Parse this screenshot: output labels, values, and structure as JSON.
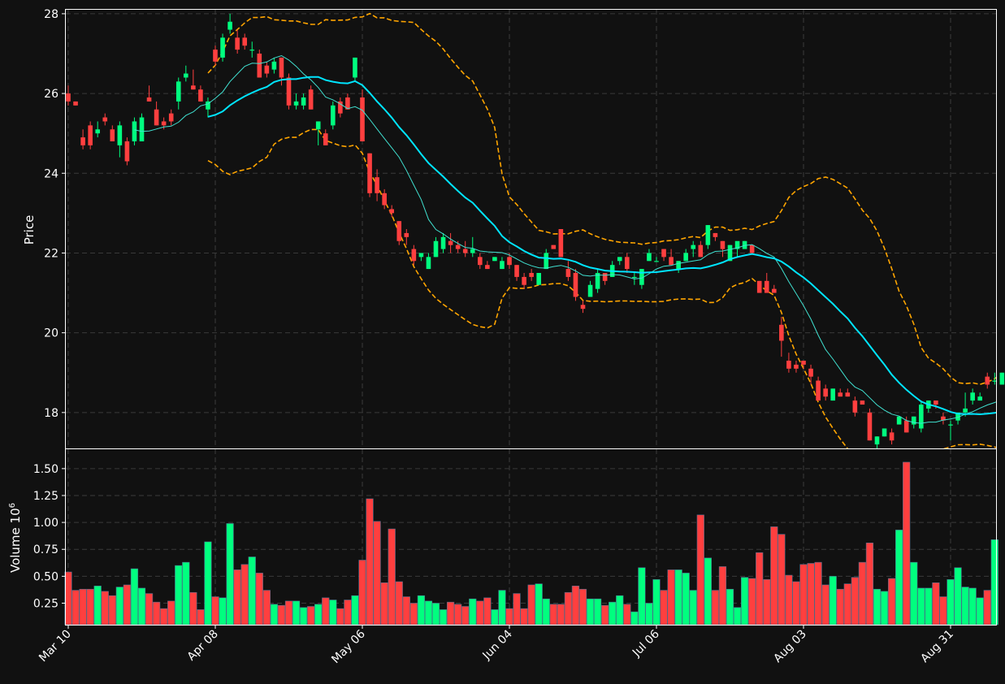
{
  "chart_data": {
    "type": "candlestick",
    "colors": {
      "background": "#111111",
      "up": "#00ff7f",
      "down": "#ff3f3f",
      "volume_edge": "#4a6b8a",
      "bollinger": "#ffa500",
      "ma_fast": "#40e0d0",
      "ma_slow": "#00e5ff",
      "grid": "#3a3a3a",
      "frame": "#ffffff"
    },
    "price_panel": {
      "ylabel": "Price",
      "ylim": [
        17.1,
        28.1
      ],
      "yticks": [
        18,
        20,
        22,
        24,
        26,
        28
      ],
      "ytick_labels": [
        "18",
        "20",
        "22",
        "24",
        "26",
        "28"
      ],
      "grid": true
    },
    "volume_panel": {
      "ylabel": "Volume",
      "ylabel_exp_base": "10",
      "ylabel_exp": "6",
      "ylim": [
        0.05,
        1.68
      ],
      "yticks": [
        0.25,
        0.5,
        0.75,
        1.0,
        1.25,
        1.5
      ],
      "ytick_labels": [
        "0.25",
        "0.50",
        "0.75",
        "1.00",
        "1.25",
        "1.50"
      ],
      "grid": true
    },
    "x_axis": {
      "tick_index": [
        0,
        20,
        40,
        60,
        80,
        100,
        120
      ],
      "tick_labels": [
        "Mar 10",
        "Apr 08",
        "May 06",
        "Jun 04",
        "Jul 06",
        "Aug 03",
        "Aug 31"
      ]
    },
    "candles": [
      [
        26.0,
        26.2,
        25.7,
        25.8
      ],
      [
        25.8,
        25.8,
        25.7,
        25.7
      ],
      [
        24.9,
        25.1,
        24.6,
        24.7
      ],
      [
        25.2,
        25.3,
        24.6,
        24.7
      ],
      [
        25.0,
        25.3,
        24.9,
        25.1
      ],
      [
        25.4,
        25.5,
        25.2,
        25.3
      ],
      [
        25.1,
        25.2,
        24.8,
        24.8
      ],
      [
        24.7,
        25.3,
        24.4,
        25.2
      ],
      [
        24.8,
        24.9,
        24.2,
        24.3
      ],
      [
        24.8,
        25.4,
        24.7,
        25.3
      ],
      [
        24.8,
        25.5,
        24.8,
        25.4
      ],
      [
        25.9,
        26.2,
        25.8,
        25.8
      ],
      [
        25.6,
        25.8,
        25.2,
        25.2
      ],
      [
        25.3,
        25.4,
        25.1,
        25.2
      ],
      [
        25.5,
        25.6,
        25.2,
        25.3
      ],
      [
        25.8,
        26.4,
        25.6,
        26.3
      ],
      [
        26.4,
        26.7,
        26.3,
        26.5
      ],
      [
        26.2,
        26.6,
        26.1,
        26.1
      ],
      [
        26.1,
        26.2,
        25.8,
        25.8
      ],
      [
        25.6,
        25.9,
        25.4,
        25.8
      ],
      [
        27.1,
        27.2,
        26.7,
        26.8
      ],
      [
        26.9,
        27.5,
        26.8,
        27.4
      ],
      [
        27.6,
        28.0,
        27.5,
        27.8
      ],
      [
        27.4,
        27.6,
        27.0,
        27.1
      ],
      [
        27.4,
        27.5,
        27.1,
        27.2
      ],
      [
        27.1,
        27.3,
        26.9,
        27.1
      ],
      [
        27.0,
        27.1,
        26.4,
        26.4
      ],
      [
        26.7,
        26.8,
        26.4,
        26.5
      ],
      [
        26.6,
        26.9,
        26.5,
        26.8
      ],
      [
        26.9,
        26.9,
        26.2,
        26.4
      ],
      [
        26.4,
        26.5,
        25.6,
        25.7
      ],
      [
        25.7,
        26.0,
        25.6,
        25.8
      ],
      [
        25.7,
        26.0,
        25.6,
        25.9
      ],
      [
        26.1,
        26.2,
        25.6,
        25.6
      ],
      [
        25.1,
        25.3,
        24.7,
        25.3
      ],
      [
        25.0,
        25.1,
        24.7,
        24.7
      ],
      [
        25.2,
        25.8,
        25.1,
        25.7
      ],
      [
        25.8,
        25.9,
        25.4,
        25.5
      ],
      [
        25.9,
        26.0,
        25.6,
        25.6
      ],
      [
        26.4,
        26.9,
        26.3,
        26.9
      ],
      [
        25.9,
        26.1,
        24.8,
        24.8
      ],
      [
        24.5,
        24.5,
        23.4,
        23.5
      ],
      [
        23.9,
        24.1,
        23.3,
        23.5
      ],
      [
        23.5,
        23.6,
        23.1,
        23.2
      ],
      [
        23.1,
        23.2,
        22.9,
        23.0
      ],
      [
        22.8,
        22.8,
        22.2,
        22.3
      ],
      [
        22.5,
        22.6,
        22.2,
        22.4
      ],
      [
        22.1,
        22.2,
        21.7,
        21.8
      ],
      [
        21.9,
        22.0,
        21.8,
        22.0
      ],
      [
        21.6,
        22.0,
        21.6,
        21.9
      ],
      [
        21.9,
        22.4,
        21.9,
        22.3
      ],
      [
        22.1,
        22.5,
        22.0,
        22.4
      ],
      [
        22.3,
        22.5,
        22.0,
        22.2
      ],
      [
        22.2,
        22.3,
        22.0,
        22.1
      ],
      [
        22.1,
        22.3,
        21.9,
        22.0
      ],
      [
        22.0,
        22.4,
        21.9,
        22.1
      ],
      [
        21.9,
        22.0,
        21.6,
        21.7
      ],
      [
        21.7,
        21.8,
        21.6,
        21.6
      ],
      [
        21.8,
        21.9,
        21.8,
        21.9
      ],
      [
        21.6,
        21.9,
        21.6,
        21.8
      ],
      [
        21.9,
        22.0,
        21.6,
        21.7
      ],
      [
        21.7,
        21.7,
        21.3,
        21.4
      ],
      [
        21.4,
        21.5,
        21.1,
        21.2
      ],
      [
        21.5,
        21.6,
        21.3,
        21.4
      ],
      [
        21.2,
        21.5,
        21.2,
        21.5
      ],
      [
        21.6,
        22.1,
        21.6,
        22.0
      ],
      [
        22.2,
        22.2,
        22.1,
        22.1
      ],
      [
        22.6,
        22.6,
        21.9,
        21.9
      ],
      [
        21.6,
        21.8,
        21.3,
        21.4
      ],
      [
        21.5,
        21.6,
        20.8,
        20.9
      ],
      [
        20.7,
        20.8,
        20.5,
        20.6
      ],
      [
        20.9,
        21.3,
        20.9,
        21.2
      ],
      [
        21.1,
        21.6,
        21.0,
        21.5
      ],
      [
        21.5,
        21.5,
        21.2,
        21.3
      ],
      [
        21.4,
        21.8,
        21.4,
        21.7
      ],
      [
        21.8,
        21.9,
        21.7,
        21.9
      ],
      [
        21.9,
        22.0,
        21.5,
        21.6
      ],
      [
        21.4,
        21.5,
        21.2,
        21.4
      ],
      [
        21.2,
        21.6,
        21.1,
        21.6
      ],
      [
        21.8,
        22.1,
        21.8,
        22.0
      ],
      [
        21.8,
        21.9,
        21.8,
        21.8
      ],
      [
        22.1,
        22.1,
        21.8,
        21.9
      ],
      [
        21.9,
        22.1,
        21.7,
        21.7
      ],
      [
        21.6,
        21.8,
        21.5,
        21.8
      ],
      [
        21.8,
        22.1,
        21.8,
        22.0
      ],
      [
        22.1,
        22.3,
        21.9,
        22.2
      ],
      [
        22.2,
        22.3,
        21.9,
        21.9
      ],
      [
        22.2,
        22.7,
        22.1,
        22.7
      ],
      [
        22.5,
        22.5,
        22.3,
        22.4
      ],
      [
        22.3,
        22.3,
        21.9,
        22.1
      ],
      [
        21.8,
        22.2,
        21.8,
        22.2
      ],
      [
        22.1,
        22.2,
        21.9,
        22.3
      ],
      [
        22.1,
        22.3,
        22.1,
        22.3
      ],
      [
        22.2,
        22.2,
        22.0,
        22.0
      ],
      [
        21.3,
        21.3,
        21.0,
        21.0
      ],
      [
        21.3,
        21.5,
        21.0,
        21.0
      ],
      [
        21.1,
        21.2,
        21.0,
        21.0
      ],
      [
        20.2,
        20.4,
        19.4,
        19.8
      ],
      [
        19.3,
        19.5,
        19.0,
        19.1
      ],
      [
        19.2,
        19.3,
        19.0,
        19.1
      ],
      [
        19.3,
        19.3,
        19.1,
        19.2
      ],
      [
        19.1,
        19.2,
        18.7,
        18.9
      ],
      [
        18.8,
        18.9,
        18.3,
        18.3
      ],
      [
        18.6,
        18.7,
        18.3,
        18.4
      ],
      [
        18.3,
        18.6,
        18.3,
        18.6
      ],
      [
        18.5,
        18.6,
        18.4,
        18.4
      ],
      [
        18.5,
        18.6,
        18.4,
        18.4
      ],
      [
        18.3,
        18.4,
        17.9,
        18.0
      ],
      [
        18.3,
        18.3,
        18.2,
        18.2
      ],
      [
        18.0,
        18.1,
        17.3,
        17.3
      ],
      [
        17.2,
        17.4,
        17.1,
        17.4
      ],
      [
        17.4,
        17.6,
        17.4,
        17.6
      ],
      [
        17.5,
        17.6,
        17.2,
        17.3
      ],
      [
        17.7,
        17.9,
        17.7,
        17.9
      ],
      [
        17.8,
        17.9,
        17.5,
        17.5
      ],
      [
        17.7,
        17.9,
        17.6,
        17.9
      ],
      [
        17.6,
        18.3,
        17.5,
        18.2
      ],
      [
        18.1,
        18.3,
        18.0,
        18.3
      ],
      [
        18.3,
        18.3,
        18.1,
        18.2
      ],
      [
        17.9,
        18.0,
        17.7,
        17.8
      ],
      [
        17.7,
        17.8,
        17.3,
        17.7
      ],
      [
        17.8,
        18.0,
        17.7,
        18.0
      ],
      [
        18.0,
        18.5,
        17.9,
        18.1
      ],
      [
        18.3,
        18.6,
        18.2,
        18.5
      ],
      [
        18.3,
        18.5,
        18.3,
        18.4
      ],
      [
        18.9,
        19.0,
        18.6,
        18.7
      ],
      [
        18.8,
        19.0,
        18.7,
        18.8
      ],
      [
        18.7,
        19.0,
        18.7,
        19.0
      ]
    ],
    "volume": [
      0.54,
      0.37,
      0.38,
      0.38,
      0.41,
      0.36,
      0.32,
      0.4,
      0.42,
      0.57,
      0.39,
      0.34,
      0.26,
      0.2,
      0.27,
      0.6,
      0.63,
      0.35,
      0.19,
      0.82,
      0.31,
      0.3,
      0.99,
      0.56,
      0.61,
      0.68,
      0.53,
      0.37,
      0.24,
      0.23,
      0.27,
      0.27,
      0.21,
      0.22,
      0.24,
      0.3,
      0.28,
      0.2,
      0.28,
      0.32,
      0.65,
      1.22,
      1.01,
      0.44,
      0.94,
      0.45,
      0.31,
      0.25,
      0.32,
      0.27,
      0.25,
      0.19,
      0.26,
      0.24,
      0.22,
      0.29,
      0.27,
      0.3,
      0.19,
      0.37,
      0.2,
      0.34,
      0.2,
      0.42,
      0.43,
      0.29,
      0.24,
      0.24,
      0.35,
      0.41,
      0.38,
      0.29,
      0.29,
      0.23,
      0.26,
      0.32,
      0.24,
      0.17,
      0.58,
      0.25,
      0.47,
      0.37,
      0.56,
      0.56,
      0.53,
      0.37,
      1.07,
      0.67,
      0.37,
      0.59,
      0.38,
      0.21,
      0.49,
      0.48,
      0.72,
      0.47,
      0.96,
      0.89,
      0.51,
      0.45,
      0.61,
      0.62,
      0.63,
      0.42,
      0.5,
      0.38,
      0.43,
      0.49,
      0.63,
      0.81,
      0.38,
      0.36,
      0.48,
      0.93,
      1.56,
      0.63,
      0.39,
      0.39,
      0.44,
      0.31,
      0.47,
      0.58,
      0.4,
      0.39,
      0.3,
      0.37,
      0.84
    ]
  }
}
